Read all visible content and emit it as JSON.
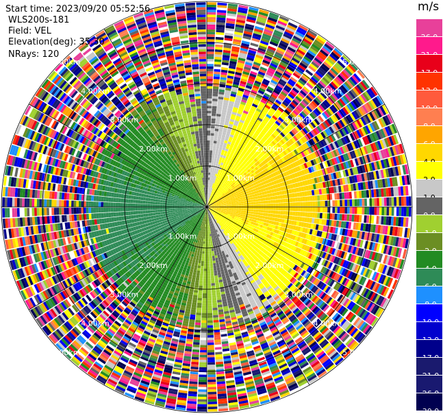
{
  "header": {
    "start_time": "Start time: 2023/09/20 05:52:56",
    "instrument": "WLS200s-181",
    "field": "Field: VEL",
    "elevation": "Elevation(deg): 35.30",
    "nrays": "NRays: 120"
  },
  "colorbar": {
    "unit": "m/s",
    "levels": [
      {
        "label": "26.0",
        "color": "#e8409a"
      },
      {
        "label": "21.0",
        "color": "#ff1a8c"
      },
      {
        "label": "17.0",
        "color": "#e8001a"
      },
      {
        "label": "13.0",
        "color": "#ff3300"
      },
      {
        "label": "10.0",
        "color": "#ff5a3c"
      },
      {
        "label": "8.0",
        "color": "#ff7f50"
      },
      {
        "label": "6.0",
        "color": "#ffa500"
      },
      {
        "label": "4.0",
        "color": "#ffd700"
      },
      {
        "label": "2.0",
        "color": "#ffff00"
      },
      {
        "label": "1.0",
        "color": "#c8c8c8"
      },
      {
        "label": "0.0",
        "color": "#646464"
      },
      {
        "label": "-1.0",
        "color": "#a0d030"
      },
      {
        "label": "-2.0",
        "color": "#6b8e23"
      },
      {
        "label": "-4.0",
        "color": "#228b22"
      },
      {
        "label": "-6.0",
        "color": "#2e8b57"
      },
      {
        "label": "-8.0",
        "color": "#1e90ff"
      },
      {
        "label": "-10.0",
        "color": "#0000ff"
      },
      {
        "label": "-13.0",
        "color": "#0000cd"
      },
      {
        "label": "-17.0",
        "color": "#00008b"
      },
      {
        "label": "-21.0",
        "color": "#1a1a6e"
      },
      {
        "label": "-26.0",
        "color": "#191970"
      },
      {
        "label": "-30.0",
        "color": "#000050"
      }
    ]
  },
  "chart_data": {
    "type": "heatmap",
    "description_kind": "PPI polar scan",
    "range_rings_km": [
      1.0,
      2.0,
      3.0,
      4.0,
      5.0
    ],
    "ring_labels": [
      "1.00km",
      "2.00km",
      "3.00km",
      "4.00km",
      "5.00km"
    ],
    "nrays": 120,
    "max_range_km": 5.0,
    "valid_range_km": 2.9,
    "regions": [
      {
        "name": "approaching-west",
        "azimuth_center_deg": 270,
        "value_ms": -3.0
      },
      {
        "name": "receding-east",
        "azimuth_center_deg": 90,
        "value_ms": 4.0
      },
      {
        "name": "near-zero-north-south",
        "azimuth_center_deg": 0,
        "value_ms": 0.0
      }
    ]
  }
}
